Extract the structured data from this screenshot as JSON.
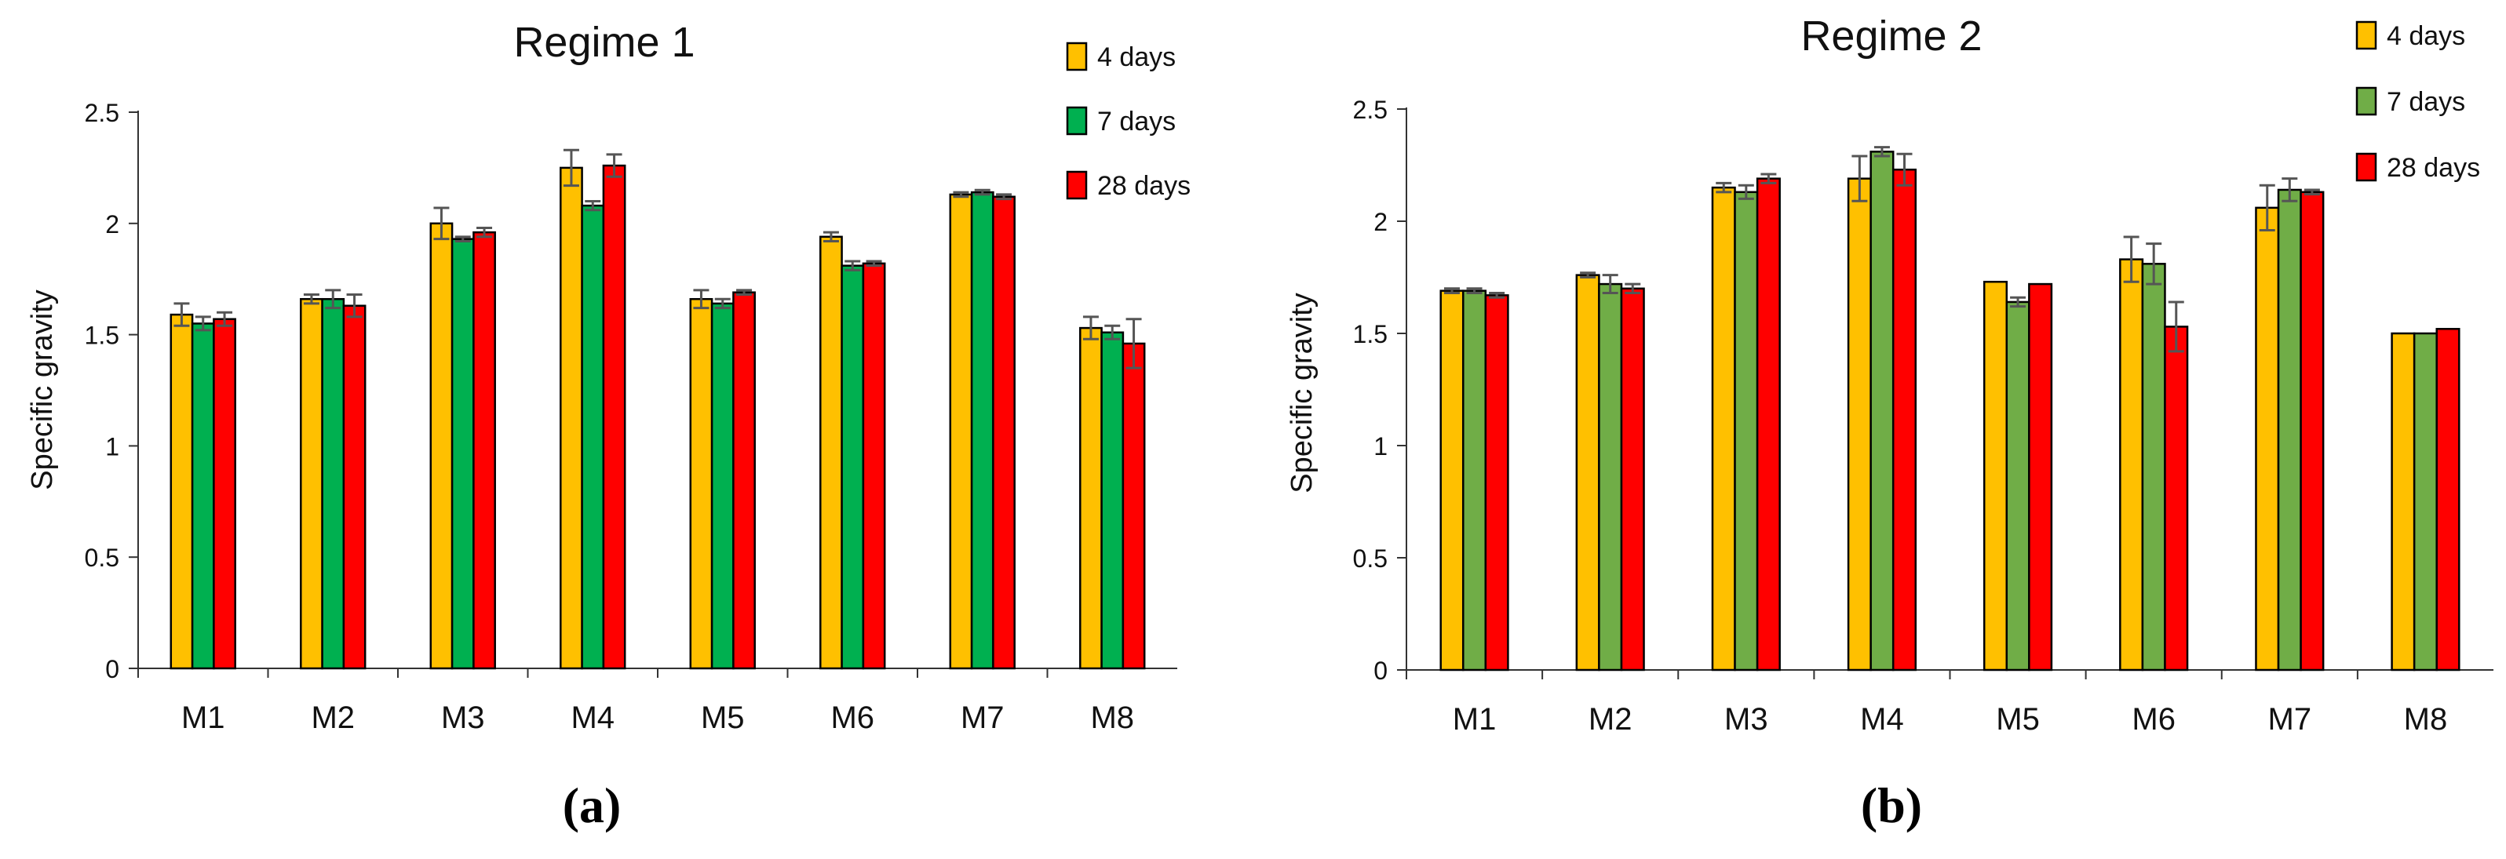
{
  "chart_data": [
    {
      "type": "bar",
      "panel_label": "(a)",
      "title": "Regime 1",
      "xlabel": "",
      "ylabel": "Specific gravity",
      "ylim": [
        0,
        2.5
      ],
      "yticks": [
        0,
        0.5,
        1,
        1.5,
        2,
        2.5
      ],
      "ytick_labels": [
        "0",
        "0.5",
        "1",
        "1.5",
        "2",
        "2.5"
      ],
      "grid": false,
      "legend_position": "top-right",
      "categories": [
        "M1",
        "M2",
        "M3",
        "M4",
        "M5",
        "M6",
        "M7",
        "M8"
      ],
      "series": [
        {
          "name": "4 days",
          "color": "#FFC000",
          "values": [
            1.59,
            1.66,
            2.0,
            2.25,
            1.66,
            1.94,
            2.13,
            1.53
          ],
          "errors": [
            0.05,
            0.02,
            0.07,
            0.08,
            0.04,
            0.02,
            0.01,
            0.05
          ]
        },
        {
          "name": "7 days",
          "color": "#00B050",
          "values": [
            1.55,
            1.66,
            1.93,
            2.08,
            1.64,
            1.81,
            2.14,
            1.51
          ],
          "errors": [
            0.03,
            0.04,
            0.01,
            0.02,
            0.02,
            0.02,
            0.01,
            0.03
          ]
        },
        {
          "name": "28 days",
          "color": "#FF0000",
          "values": [
            1.57,
            1.63,
            1.96,
            2.26,
            1.69,
            1.82,
            2.12,
            1.46
          ],
          "errors": [
            0.03,
            0.05,
            0.02,
            0.05,
            0.01,
            0.01,
            0.01,
            0.11
          ]
        }
      ]
    },
    {
      "type": "bar",
      "panel_label": "(b)",
      "title": "Regime 2",
      "xlabel": "",
      "ylabel": "Specific gravity",
      "ylim": [
        0,
        2.5
      ],
      "yticks": [
        0,
        0.5,
        1,
        1.5,
        2,
        2.5
      ],
      "ytick_labels": [
        "0",
        "0.5",
        "1",
        "1.5",
        "2",
        "2.5"
      ],
      "grid": false,
      "legend_position": "top-right",
      "categories": [
        "M1",
        "M2",
        "M3",
        "M4",
        "M5",
        "M6",
        "M7",
        "M8"
      ],
      "series": [
        {
          "name": "4 days",
          "color": "#FFC000",
          "values": [
            1.69,
            1.76,
            2.15,
            2.19,
            1.73,
            1.83,
            2.06,
            1.5
          ],
          "errors": [
            0.01,
            0.01,
            0.02,
            0.1,
            0.0,
            0.1,
            0.1,
            0.0
          ]
        },
        {
          "name": "7 days",
          "color": "#70AD47",
          "values": [
            1.69,
            1.72,
            2.13,
            2.31,
            1.64,
            1.81,
            2.14,
            1.5
          ],
          "errors": [
            0.01,
            0.04,
            0.03,
            0.02,
            0.02,
            0.09,
            0.05,
            0.0
          ]
        },
        {
          "name": "28 days",
          "color": "#FF0000",
          "values": [
            1.67,
            1.7,
            2.19,
            2.23,
            1.72,
            1.53,
            2.13,
            1.52
          ],
          "errors": [
            0.01,
            0.02,
            0.02,
            0.07,
            0.0,
            0.11,
            0.01,
            0.0
          ]
        }
      ]
    }
  ]
}
